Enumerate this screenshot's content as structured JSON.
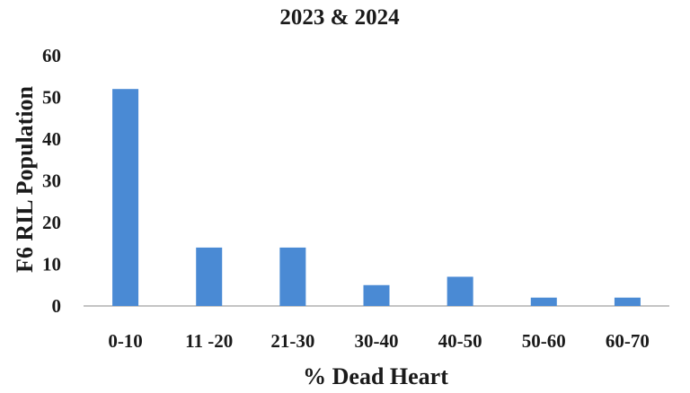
{
  "chart_data": {
    "type": "bar",
    "title": "2023 & 2024",
    "xlabel": "% Dead Heart",
    "ylabel": "F6 RIL Population",
    "categories": [
      "0-10",
      "11 -20",
      "21-30",
      "30-40",
      "40-50",
      "50-60",
      "60-70"
    ],
    "values": [
      52,
      14,
      14,
      5,
      7,
      2,
      2
    ],
    "ylim": [
      0,
      60
    ],
    "yticks": [
      0,
      10,
      20,
      30,
      40,
      50,
      60
    ],
    "grid": false,
    "bar_color": "#4a8ad4",
    "axis_color": "#b0b0b0"
  }
}
